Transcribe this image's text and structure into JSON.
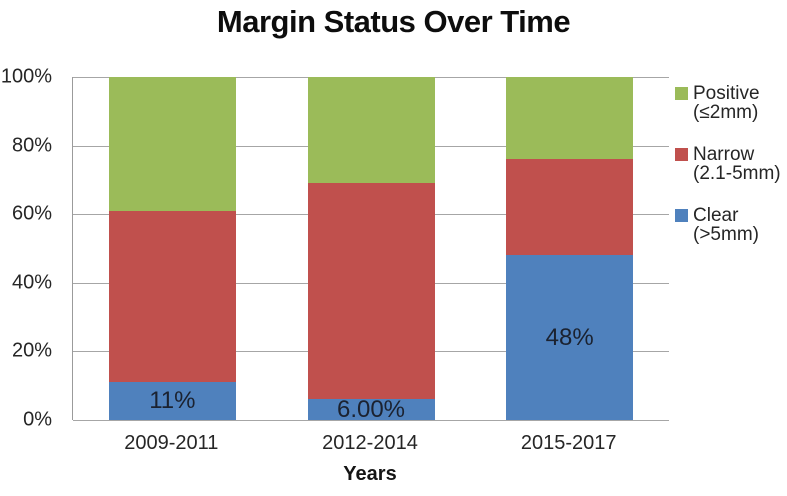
{
  "chart_data": {
    "type": "bar",
    "subtype": "stacked-100-percent",
    "title": "Margin Status Over Time",
    "xlabel": "Years",
    "categories": [
      "2009-2011",
      "2012-2014",
      "2015-2017"
    ],
    "series": [
      {
        "name": "Clear (>5mm)",
        "color": "#4F81BD",
        "values": [
          11,
          6,
          48
        ],
        "data_labels": [
          "11%",
          "6.00%",
          "48%"
        ]
      },
      {
        "name": "Narrow (2.1-5mm)",
        "color": "#C0504D",
        "values": [
          50,
          63,
          28
        ],
        "data_labels": [
          "",
          "",
          ""
        ]
      },
      {
        "name": "Positive (≤2mm)",
        "color": "#9BBB59",
        "values": [
          39,
          31,
          24
        ],
        "data_labels": [
          "",
          "",
          ""
        ]
      }
    ],
    "y_axis": {
      "ticks": [
        "0%",
        "20%",
        "40%",
        "60%",
        "80%",
        "100%"
      ],
      "min": 0,
      "max": 100,
      "grid": true
    },
    "legend": {
      "position": "right",
      "entries": [
        {
          "lines": [
            "Positive",
            "(≤2mm)"
          ],
          "color": "#9BBB59"
        },
        {
          "lines": [
            "Narrow",
            "(2.1-5mm)"
          ],
          "color": "#C0504D"
        },
        {
          "lines": [
            "Clear",
            "(>5mm)"
          ],
          "color": "#4F81BD"
        }
      ]
    },
    "colors": {
      "background": "#FFFFFF",
      "gridline": "#A6A6A6",
      "axis_text": "#262626",
      "title_text": "#0D0D0D",
      "data_label_text": "#1B2230"
    }
  }
}
